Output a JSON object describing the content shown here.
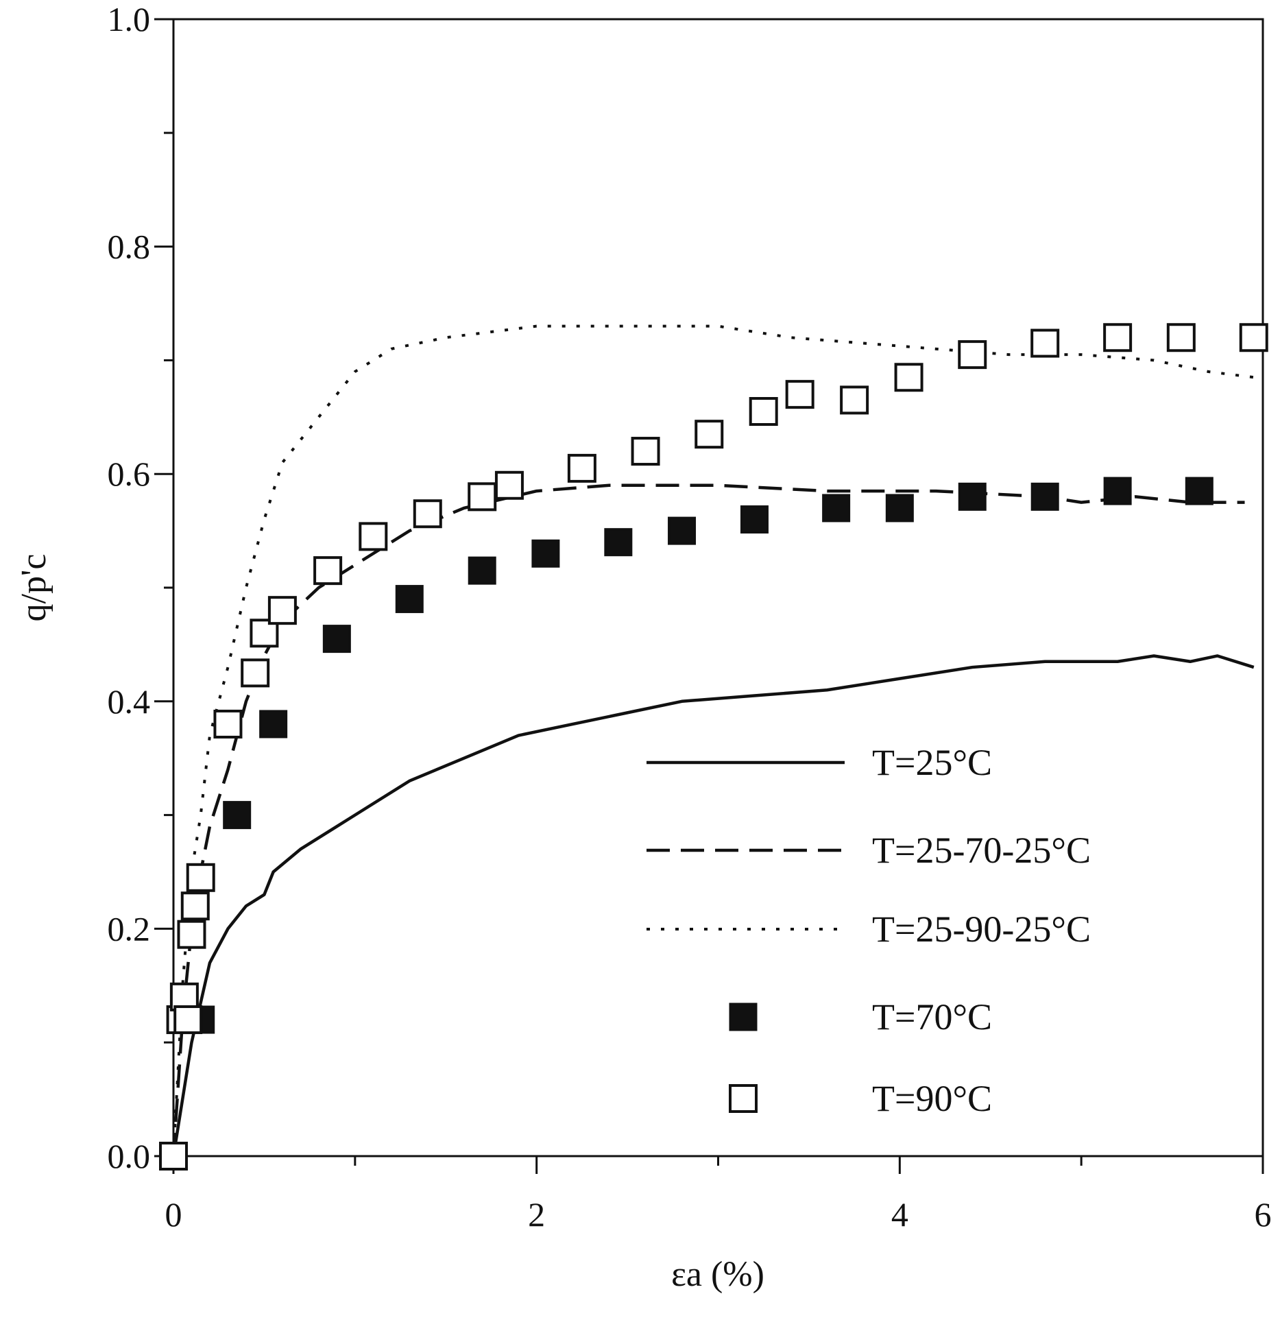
{
  "chart_data": {
    "type": "line",
    "title": "",
    "xlabel": "εa (%)",
    "ylabel": "q/p'c",
    "xlim": [
      0,
      6
    ],
    "ylim": [
      0,
      1
    ],
    "xticks_major": [
      0,
      2,
      4,
      6
    ],
    "xticks_minor": [
      1,
      3,
      5
    ],
    "xtick_labels": [
      "0",
      "2",
      "4",
      "6"
    ],
    "yticks": [
      0.0,
      0.2,
      0.4,
      0.6,
      0.8,
      1.0
    ],
    "yticks_minor": [
      0.1,
      0.3,
      0.5,
      0.7,
      0.9
    ],
    "ytick_labels": [
      "0.0",
      "0.2",
      "0.4",
      "0.6",
      "0.8",
      "1.0"
    ],
    "grid": false,
    "legend_position": "bottom-right",
    "series": [
      {
        "name": "T=25°C",
        "kind": "line",
        "style": "solid",
        "x": [
          0,
          0.1,
          0.2,
          0.3,
          0.4,
          0.5,
          0.55,
          0.7,
          0.9,
          1.1,
          1.3,
          1.6,
          1.9,
          2.2,
          2.5,
          2.8,
          3.2,
          3.6,
          4.0,
          4.4,
          4.8,
          5.2,
          5.4,
          5.6,
          5.75,
          5.95
        ],
        "y": [
          0,
          0.1,
          0.17,
          0.2,
          0.22,
          0.23,
          0.25,
          0.27,
          0.29,
          0.31,
          0.33,
          0.35,
          0.37,
          0.38,
          0.39,
          0.4,
          0.405,
          0.41,
          0.42,
          0.43,
          0.435,
          0.435,
          0.44,
          0.435,
          0.44,
          0.43
        ]
      },
      {
        "name": "T=25-70-25°C",
        "kind": "line",
        "style": "dashed",
        "x": [
          0,
          0.05,
          0.1,
          0.15,
          0.2,
          0.3,
          0.4,
          0.5,
          0.6,
          0.8,
          1.0,
          1.3,
          1.6,
          2.0,
          2.4,
          3.0,
          3.6,
          4.2,
          4.8,
          5.0,
          5.3,
          5.6,
          5.9
        ],
        "y": [
          0,
          0.12,
          0.2,
          0.25,
          0.29,
          0.34,
          0.4,
          0.44,
          0.47,
          0.5,
          0.52,
          0.55,
          0.57,
          0.585,
          0.59,
          0.59,
          0.585,
          0.585,
          0.58,
          0.575,
          0.58,
          0.575,
          0.575
        ]
      },
      {
        "name": "T=25-90-25°C",
        "kind": "line",
        "style": "dotted",
        "x": [
          0,
          0.05,
          0.1,
          0.15,
          0.2,
          0.3,
          0.4,
          0.5,
          0.6,
          0.8,
          1.0,
          1.2,
          1.5,
          2.0,
          2.5,
          3.0,
          3.4,
          3.8,
          4.2,
          4.6,
          5.0,
          5.4,
          5.7,
          5.95
        ],
        "y": [
          0,
          0.15,
          0.25,
          0.3,
          0.37,
          0.43,
          0.5,
          0.56,
          0.61,
          0.65,
          0.69,
          0.71,
          0.72,
          0.73,
          0.73,
          0.73,
          0.72,
          0.715,
          0.71,
          0.705,
          0.705,
          0.7,
          0.69,
          0.685
        ]
      },
      {
        "name": "T=70°C",
        "kind": "marker",
        "marker": "filled-square",
        "x": [
          0,
          0.15,
          0.35,
          0.55,
          0.9,
          1.3,
          1.7,
          2.05,
          2.45,
          2.8,
          3.2,
          3.65,
          4.0,
          4.4,
          4.8,
          5.2,
          5.65
        ],
        "y": [
          0.0,
          0.12,
          0.3,
          0.38,
          0.455,
          0.49,
          0.515,
          0.53,
          0.54,
          0.55,
          0.56,
          0.57,
          0.57,
          0.58,
          0.58,
          0.585,
          0.585
        ]
      },
      {
        "name": "T=90°C",
        "kind": "marker",
        "marker": "open-square",
        "x": [
          0,
          0.04,
          0.06,
          0.08,
          0.1,
          0.12,
          0.15,
          0.3,
          0.45,
          0.5,
          0.6,
          0.85,
          1.1,
          1.4,
          1.7,
          1.85,
          2.25,
          2.6,
          2.95,
          3.25,
          3.45,
          3.75,
          4.05,
          4.4,
          4.8,
          5.2,
          5.55,
          5.95
        ],
        "y": [
          0.0,
          0.12,
          0.14,
          0.12,
          0.195,
          0.22,
          0.245,
          0.38,
          0.425,
          0.46,
          0.48,
          0.515,
          0.545,
          0.565,
          0.58,
          0.59,
          0.605,
          0.62,
          0.635,
          0.655,
          0.67,
          0.665,
          0.685,
          0.705,
          0.715,
          0.72,
          0.72,
          0.72
        ]
      }
    ]
  }
}
